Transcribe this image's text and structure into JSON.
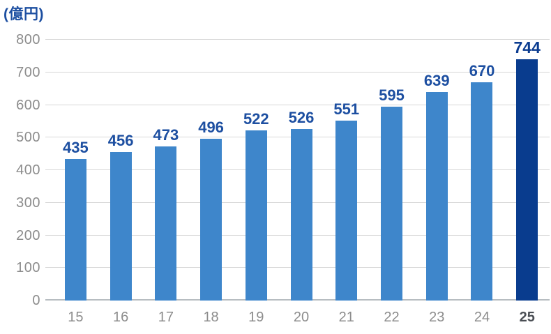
{
  "chart_data": {
    "type": "bar",
    "unit_label": "(億円)",
    "categories": [
      "15",
      "16",
      "17",
      "18",
      "19",
      "20",
      "21",
      "22",
      "23",
      "24",
      "25"
    ],
    "values": [
      435,
      456,
      473,
      496,
      522,
      526,
      551,
      595,
      639,
      670,
      744
    ],
    "ylim": [
      0,
      800
    ],
    "y_ticks": [
      0,
      100,
      200,
      300,
      400,
      500,
      600,
      700,
      800
    ],
    "grid": "horizontal",
    "legend": "none",
    "value_labels": "above-bars",
    "highlight_index": 10,
    "colors": {
      "bar": "#3e86cb",
      "bar_highlight": "#093c8e",
      "value_label": "#1d4fa1",
      "value_label_highlight": "#0b3c90",
      "axis_tick": "#8c8c8c",
      "axis_tick_highlight": "#4a4e54",
      "gridline": "#d7d7d7",
      "axis_line": "#b7bdc1",
      "unit_label": "#1d4fa1"
    }
  }
}
